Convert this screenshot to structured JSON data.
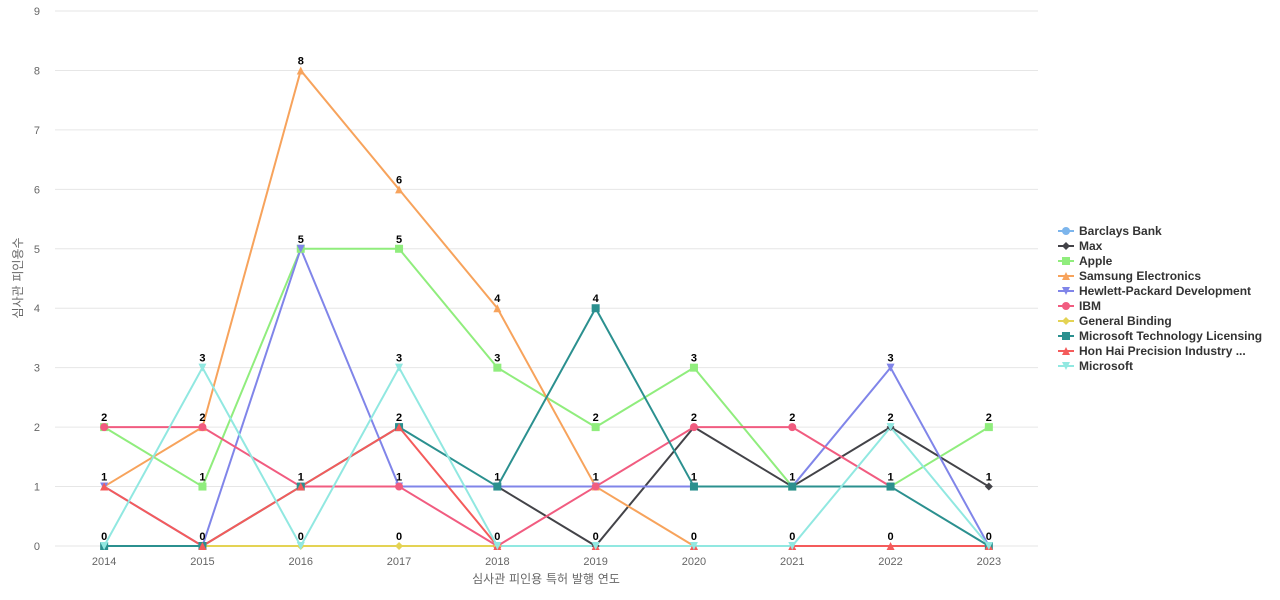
{
  "chart_data": {
    "type": "line",
    "categories": [
      "2014",
      "2015",
      "2016",
      "2017",
      "2018",
      "2019",
      "2020",
      "2021",
      "2022",
      "2023"
    ],
    "xlabel": "심사관 피인용 특허 발행 연도",
    "ylabel": "심사관 피인용수",
    "ylim": [
      0,
      9
    ],
    "yticks": [
      0,
      1,
      2,
      3,
      4,
      5,
      6,
      7,
      8,
      9
    ],
    "grid": true,
    "legend_position": "right",
    "series": [
      {
        "name": "Barclays Bank",
        "color": "#7cb5ec",
        "marker": "circle",
        "values": [
          null,
          null,
          null,
          null,
          null,
          null,
          null,
          null,
          null,
          null
        ]
      },
      {
        "name": "Max",
        "color": "#434348",
        "marker": "diamond",
        "values": [
          null,
          null,
          null,
          null,
          1,
          0,
          2,
          1,
          2,
          1
        ]
      },
      {
        "name": "Apple",
        "color": "#90ed7d",
        "marker": "square",
        "values": [
          2,
          1,
          5,
          5,
          3,
          2,
          3,
          1,
          1,
          2
        ]
      },
      {
        "name": "Samsung Electronics",
        "color": "#f7a35c",
        "marker": "triangle",
        "values": [
          1,
          2,
          8,
          6,
          4,
          1,
          0,
          null,
          null,
          null
        ]
      },
      {
        "name": "Hewlett-Packard Development",
        "color": "#8085e9",
        "marker": "triangle-down",
        "values": [
          1,
          0,
          5,
          1,
          1,
          1,
          1,
          1,
          3,
          0
        ]
      },
      {
        "name": "IBM",
        "color": "#f15c80",
        "marker": "circle",
        "values": [
          2,
          2,
          1,
          1,
          0,
          1,
          2,
          2,
          1,
          null
        ]
      },
      {
        "name": "General Binding",
        "color": "#e4d354",
        "marker": "diamond",
        "values": [
          0,
          0,
          0,
          0,
          0,
          null,
          null,
          null,
          null,
          null
        ]
      },
      {
        "name": "Microsoft Technology Licensing",
        "color": "#2b908f",
        "marker": "square",
        "values": [
          0,
          0,
          1,
          2,
          1,
          4,
          1,
          1,
          1,
          0
        ]
      },
      {
        "name": "Hon Hai Precision Industry ...",
        "color": "#f45b5b",
        "marker": "triangle",
        "values": [
          1,
          0,
          1,
          2,
          0,
          0,
          0,
          0,
          0,
          0
        ]
      },
      {
        "name": "Microsoft",
        "color": "#91e8e1",
        "marker": "triangle-down",
        "values": [
          0,
          3,
          0,
          3,
          0,
          0,
          0,
          0,
          2,
          0
        ]
      }
    ],
    "data_labels": [
      {
        "category": "2014",
        "labels": [
          "2",
          "1",
          "0"
        ]
      },
      {
        "category": "2015",
        "labels": [
          "3",
          "2",
          "1",
          "0"
        ]
      },
      {
        "category": "2016",
        "labels": [
          "8",
          "5",
          "1",
          "0"
        ]
      },
      {
        "category": "2017",
        "labels": [
          "6",
          "5",
          "3",
          "2",
          "1",
          "0"
        ]
      },
      {
        "category": "2018",
        "labels": [
          "4",
          "3",
          "1",
          "0"
        ]
      },
      {
        "category": "2019",
        "labels": [
          "4",
          "2",
          "1",
          "0"
        ]
      },
      {
        "category": "2020",
        "labels": [
          "3",
          "2",
          "1",
          "0"
        ]
      },
      {
        "category": "2021",
        "labels": [
          "2",
          "1",
          "0"
        ]
      },
      {
        "category": "2022",
        "labels": [
          "3",
          "2",
          "1",
          "0"
        ]
      },
      {
        "category": "2023",
        "labels": [
          "2",
          "1",
          "0"
        ]
      }
    ]
  }
}
